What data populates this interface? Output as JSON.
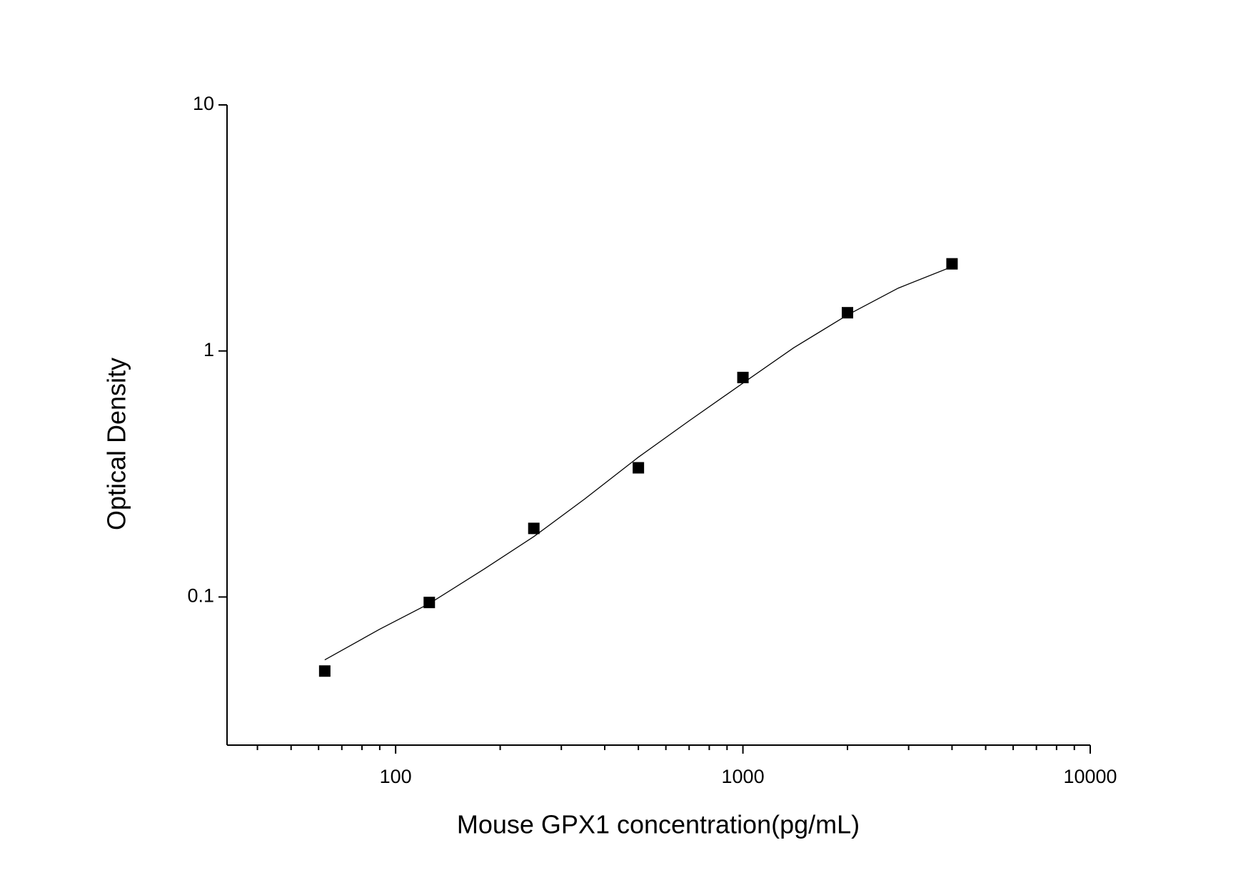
{
  "chart_data": {
    "type": "scatter",
    "x_label": "Mouse GPX1 concentration(pg/mL)",
    "y_label": "Optical Density",
    "x": [
      62.5,
      125,
      250,
      500,
      1000,
      2000,
      4000
    ],
    "values": [
      0.05,
      0.095,
      0.19,
      0.335,
      0.78,
      1.43,
      2.26
    ],
    "color": "#000000",
    "fit": {
      "x": [
        62.5,
        90,
        125,
        180,
        250,
        350,
        500,
        700,
        1000,
        1400,
        2000,
        2800,
        4000
      ],
      "values": [
        0.0555,
        0.074,
        0.094,
        0.13,
        0.176,
        0.25,
        0.37,
        0.52,
        0.74,
        1.03,
        1.4,
        1.8,
        2.2
      ],
      "color": "#000000"
    },
    "xlog": true,
    "ylog": true,
    "xlim": [
      32.7,
      10000
    ],
    "ylim": [
      0.025,
      10
    ],
    "xticks": [
      100,
      1000,
      10000
    ],
    "x_minor_ticks": [
      40,
      50,
      60,
      70,
      80,
      90,
      200,
      300,
      400,
      500,
      600,
      700,
      800,
      900,
      2000,
      3000,
      4000,
      5000,
      6000,
      7000,
      8000,
      9000
    ],
    "yticks": [
      0.1,
      1,
      10
    ]
  }
}
